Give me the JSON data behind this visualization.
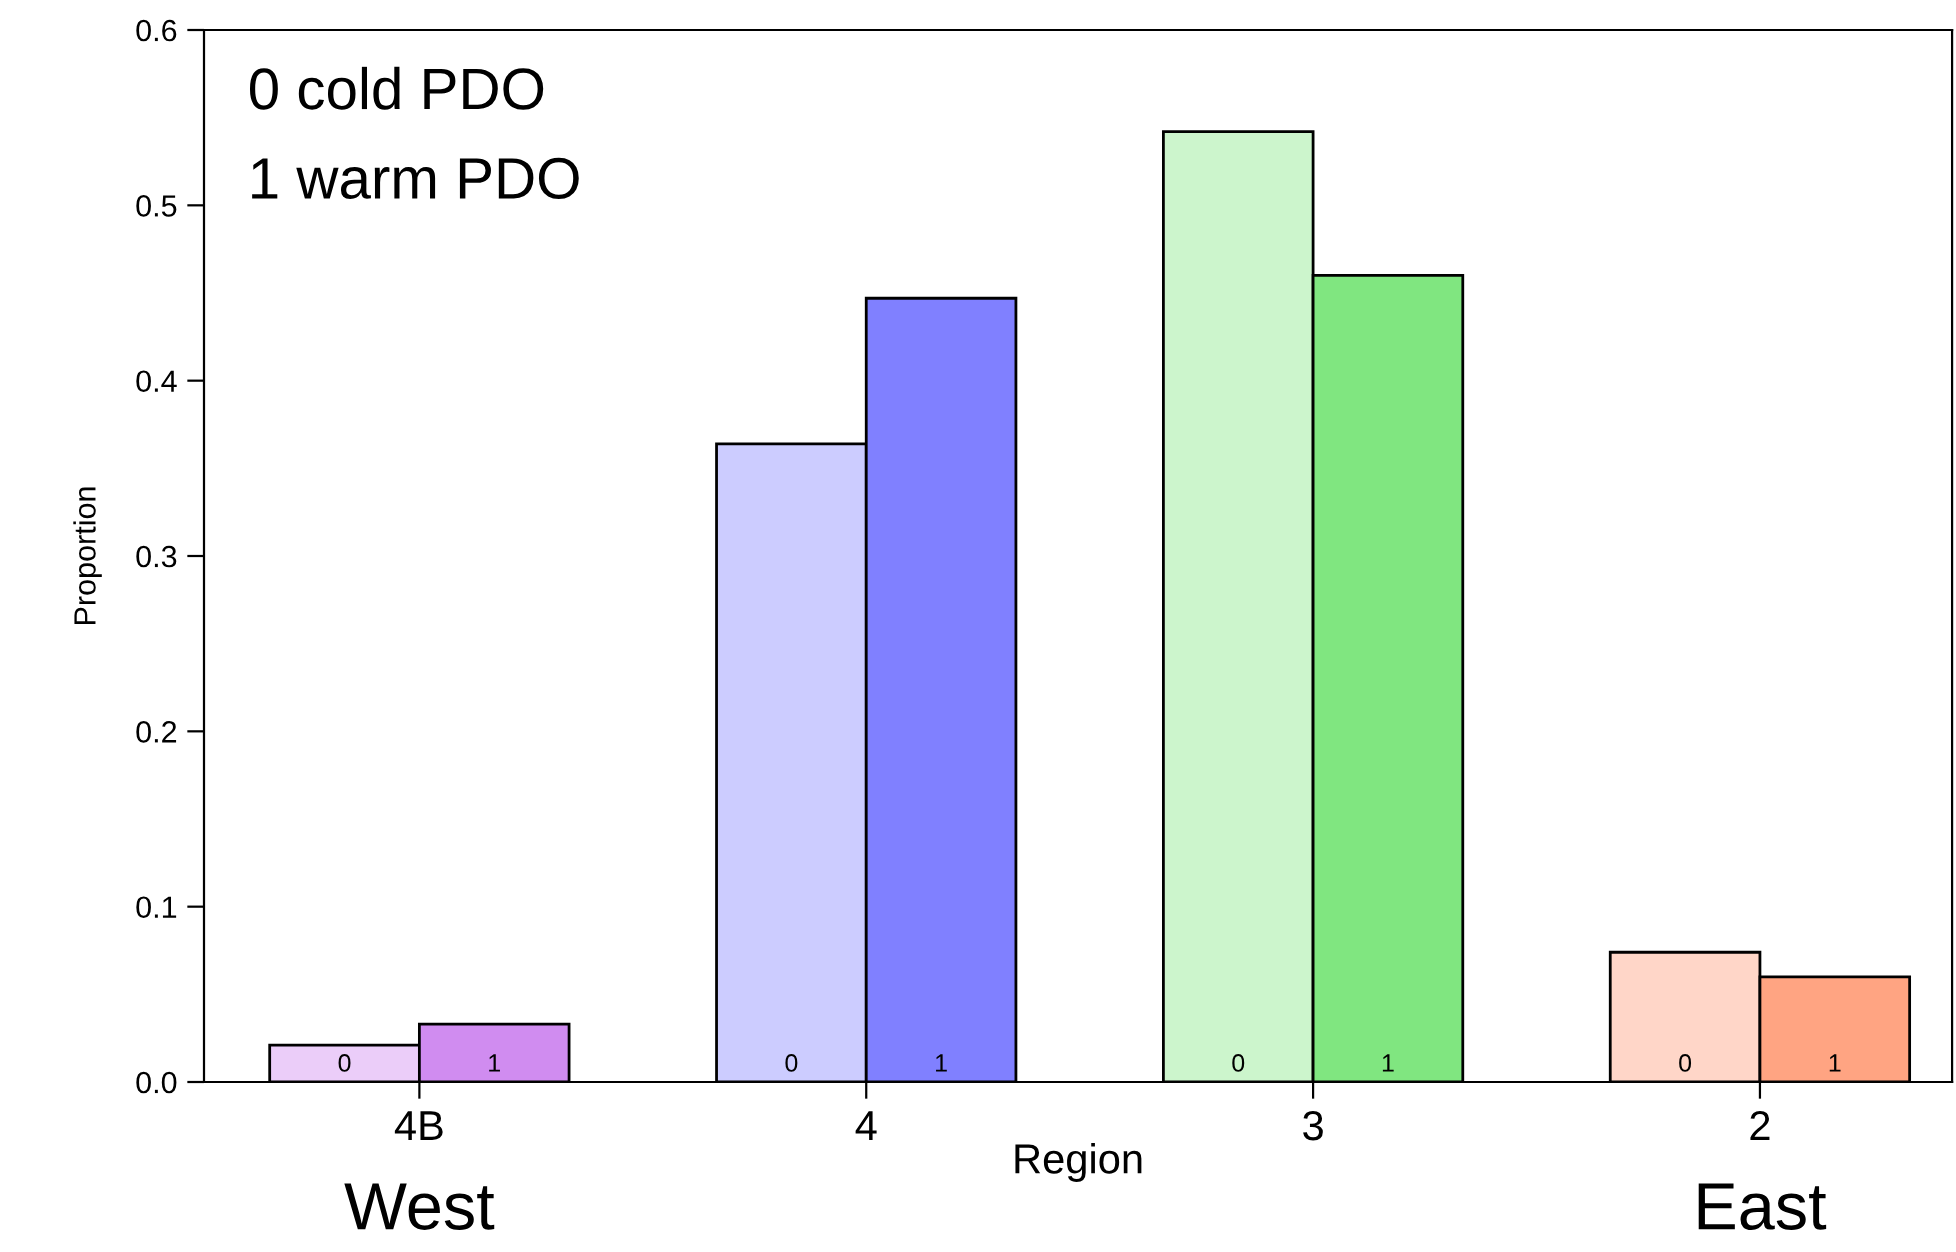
{
  "chart_data": {
    "type": "bar",
    "xlabel": "Region",
    "ylabel": "Proportion",
    "categories": [
      "4B",
      "4",
      "3",
      "2"
    ],
    "series": [
      {
        "name": "0",
        "colors": [
          "#ebcdf9",
          "#ccccff",
          "#ccf5cc",
          "#ffd6c8"
        ],
        "values": [
          0.021,
          0.364,
          0.542,
          0.074
        ]
      },
      {
        "name": "1",
        "colors": [
          "#d08cf0",
          "#8080ff",
          "#80e680",
          "#ffa482"
        ],
        "values": [
          0.033,
          0.447,
          0.46,
          0.06
        ]
      }
    ],
    "ylim": [
      0,
      0.6
    ],
    "yticks": [
      {
        "value": 0,
        "label": "0.0"
      },
      0.1,
      0.2,
      0.3,
      0.4,
      0.5,
      0.6
    ],
    "annotations": [
      "0 cold PDO",
      "1 warm PDO",
      "West",
      "East"
    ],
    "grid": false,
    "legend": false
  }
}
